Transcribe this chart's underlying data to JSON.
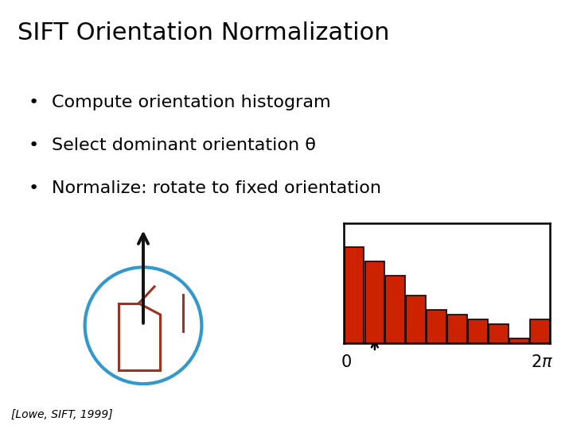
{
  "title": "SIFT Orientation Normalization",
  "bullets": [
    "Compute orientation histogram",
    "Select dominant orientation θ",
    "Normalize: rotate to fixed orientation"
  ],
  "citation": "[Lowe, SIFT, 1999]",
  "bg_color": "#ffffff",
  "title_fontsize": 22,
  "bullet_fontsize": 16,
  "hist_values": [
    10,
    8.5,
    7,
    5,
    3.5,
    3,
    2.5,
    2,
    0.5,
    2.5
  ],
  "hist_color": "#cc2200",
  "hist_edgecolor": "#1a0000",
  "dominant_bin": 1,
  "circle_color": "#3399cc",
  "arrow_color": "#111111",
  "red_shape_color": "#993322"
}
